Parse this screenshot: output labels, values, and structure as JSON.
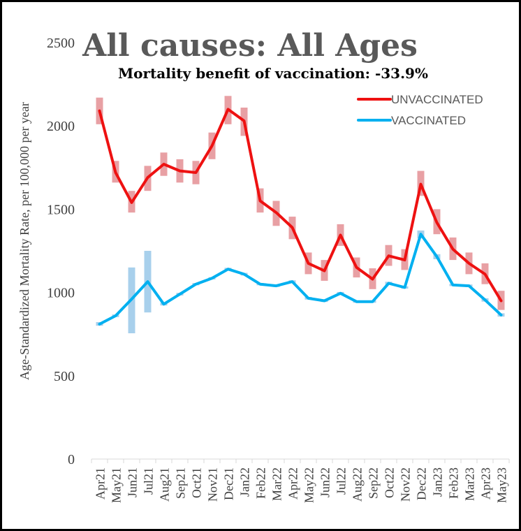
{
  "chart_data": {
    "type": "line",
    "title": "All causes: All Ages",
    "subtitle": "Mortality benefit of vaccination: -33.9%",
    "xlabel": "",
    "ylabel": "Age-Standardized Mortality Rate, per 100,000 per year",
    "ylim": [
      0,
      2500
    ],
    "yticks": [
      0,
      500,
      1000,
      1500,
      2000,
      2500
    ],
    "grid": false,
    "legend_position": "top-right",
    "categories": [
      "Apr21",
      "May21",
      "Jun21",
      "Jul21",
      "Aug21",
      "Sep21",
      "Oct21",
      "Nov21",
      "Dec21",
      "Jan22",
      "Feb22",
      "Mar22",
      "Apr22",
      "May22",
      "Jun22",
      "Jul22",
      "Aug22",
      "Sep22",
      "Oct22",
      "Nov22",
      "Dec22",
      "Jan23",
      "Feb23",
      "Mar23",
      "Apr23",
      "May23"
    ],
    "series": [
      {
        "name": "UNVACCINATED",
        "color": "#ee1111",
        "band_color": "#e8a0a4",
        "values": [
          2090,
          1720,
          1540,
          1690,
          1770,
          1730,
          1720,
          1880,
          2100,
          2030,
          1550,
          1480,
          1390,
          1175,
          1130,
          1345,
          1150,
          1080,
          1220,
          1195,
          1650,
          1420,
          1260,
          1175,
          1110,
          950
        ],
        "ci_low": [
          2010,
          1660,
          1480,
          1610,
          1700,
          1660,
          1650,
          1800,
          2010,
          1940,
          1480,
          1400,
          1320,
          1110,
          1070,
          1280,
          1090,
          1020,
          1160,
          1135,
          1580,
          1350,
          1195,
          1110,
          1050,
          895
        ],
        "ci_high": [
          2170,
          1790,
          1610,
          1760,
          1840,
          1800,
          1790,
          1960,
          2180,
          2110,
          1625,
          1550,
          1455,
          1240,
          1195,
          1410,
          1210,
          1145,
          1285,
          1260,
          1730,
          1500,
          1330,
          1240,
          1175,
          1010
        ]
      },
      {
        "name": "VACCINATED",
        "color": "#00b0f0",
        "band_color": "#a8d0ec",
        "values": [
          810,
          860,
          960,
          1065,
          930,
          990,
          1050,
          1085,
          1140,
          1110,
          1050,
          1040,
          1065,
          965,
          950,
          995,
          945,
          945,
          1055,
          1030,
          1350,
          1215,
          1045,
          1040,
          955,
          865
        ],
        "ci_low": [
          800,
          852,
          755,
          880,
          922,
          982,
          1043,
          1078,
          1132,
          1102,
          1043,
          1033,
          1057,
          957,
          943,
          987,
          938,
          938,
          1046,
          1023,
          1325,
          1200,
          1038,
          1032,
          945,
          855
        ],
        "ci_high": [
          822,
          868,
          1150,
          1250,
          938,
          998,
          1057,
          1092,
          1148,
          1118,
          1057,
          1047,
          1073,
          973,
          957,
          1003,
          952,
          952,
          1064,
          1037,
          1372,
          1230,
          1052,
          1048,
          965,
          875
        ]
      }
    ]
  }
}
